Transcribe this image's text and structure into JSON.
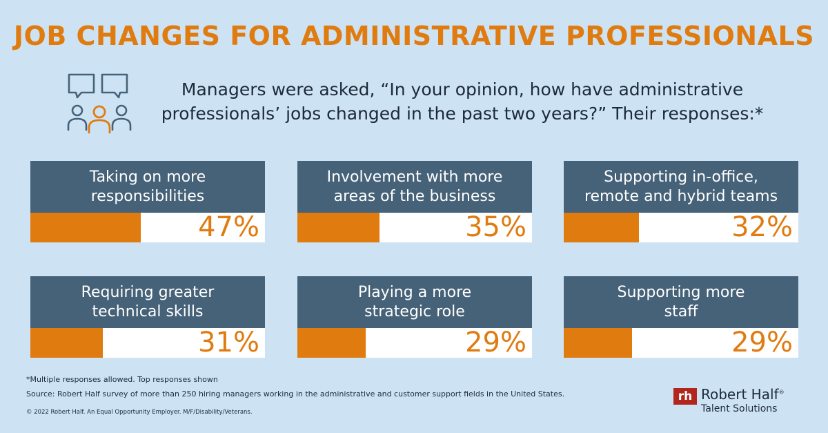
{
  "title": "JOB CHANGES FOR ADMINISTRATIVE PROFESSIONALS",
  "question": {
    "line1": "Managers were asked, “In your opinion, how have administrative",
    "line2": "professionals’ jobs changed in the past two years?” Their responses:*"
  },
  "colors": {
    "accent": "#e07b10",
    "card_header": "#466278",
    "background": "#cde3f3",
    "logo_red": "#b3261e"
  },
  "chart_data": {
    "type": "bar",
    "categories": [
      [
        "Taking on more",
        "responsibilities"
      ],
      [
        "Involvement with more",
        "areas of the business"
      ],
      [
        "Supporting in-office,",
        "remote and hybrid teams"
      ],
      [
        "Requiring greater",
        "technical skills"
      ],
      [
        "Playing a more",
        "strategic role"
      ],
      [
        "Supporting more",
        "staff"
      ]
    ],
    "values": [
      47,
      35,
      32,
      31,
      29,
      29
    ],
    "value_labels": [
      "47%",
      "35%",
      "32%",
      "31%",
      "29%",
      "29%"
    ],
    "ylim": [
      0,
      100
    ]
  },
  "footnotes": {
    "note": "*Multiple responses allowed. Top responses shown",
    "source": "Source: Robert Half survey of more than 250 hiring managers working in the administrative and customer support fields in the United States.",
    "copyright": "© 2022 Robert Half. An Equal Opportunity Employer. M/F/Disability/Veterans."
  },
  "logo": {
    "mark": "rh",
    "name": "Robert Half",
    "trademark": "®",
    "subtitle": "Talent Solutions"
  },
  "icons": {
    "header_icon": "people-discussion-icon"
  }
}
